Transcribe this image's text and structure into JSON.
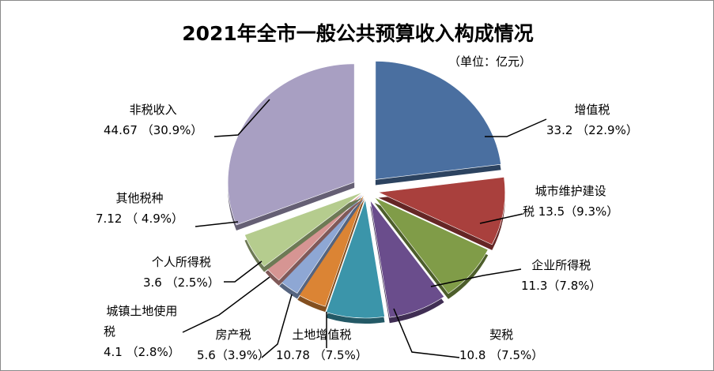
{
  "chart_data": {
    "type": "pie",
    "title": "2021年全市一般公共预算收入构成情况",
    "subtitle": "（单位：亿元）",
    "slices": [
      {
        "name": "增值税",
        "value": 33.2,
        "percent": "22.9%",
        "label_lines": [
          "增值税",
          "33.2 （22.9%）"
        ],
        "color": "#4a6fa0"
      },
      {
        "name": "城市维护建设税",
        "value": 13.5,
        "percent": "9.3%",
        "label_lines": [
          "城市维护建设",
          "税 13.5（9.3%）"
        ],
        "color": "#a9403d"
      },
      {
        "name": "企业所得税",
        "value": 11.3,
        "percent": "7.8%",
        "label_lines": [
          "企业所得税",
          "11.3（7.8%）"
        ],
        "color": "#809c48"
      },
      {
        "name": "契税",
        "value": 10.8,
        "percent": "7.5%",
        "label_lines": [
          "契税",
          "10.8 （7.5%）"
        ],
        "color": "#6a4d8c"
      },
      {
        "name": "土地增值税",
        "value": 10.78,
        "percent": "7.5%",
        "label_lines": [
          "土地增值税",
          "10.78 （7.5%）"
        ],
        "color": "#3b95aa"
      },
      {
        "name": "房产税",
        "value": 5.6,
        "percent": "3.9%",
        "label_lines": [
          "房产税",
          "5.6（3.9%）"
        ],
        "color": "#db8434"
      },
      {
        "name": "城镇土地使用税",
        "value": 4.1,
        "percent": "2.8%",
        "label_lines": [
          "城镇土地使用",
          "税",
          "4.1 （2.8%）"
        ],
        "color": "#8ea7d4"
      },
      {
        "name": "个人所得税",
        "value": 3.6,
        "percent": "2.5%",
        "label_lines": [
          "个人所得税",
          "3.6 （2.5%）"
        ],
        "color": "#d69593"
      },
      {
        "name": "其他税种",
        "value": 7.12,
        "percent": "4.9%",
        "label_lines": [
          "其他税种",
          "7.12 （ 4.9%）"
        ],
        "color": "#b5cc8e"
      },
      {
        "name": "非税收入",
        "value": 44.67,
        "percent": "30.9%",
        "label_lines": [
          "非税收入",
          "44.67 （30.9%）"
        ],
        "color": "#a89fc2"
      }
    ]
  }
}
